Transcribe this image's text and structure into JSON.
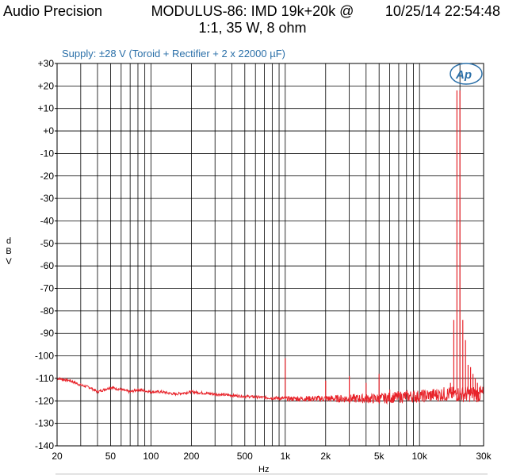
{
  "header": {
    "left": "Audio Precision",
    "center_line1": "MODULUS-86: IMD 19k+20k @",
    "center_line2": "1:1, 35 W, 8 ohm",
    "right": "10/25/14 22:54:48"
  },
  "chart_data": {
    "type": "line",
    "title": "MODULUS-86: IMD 19k+20k @ 1:1, 35 W, 8 ohm",
    "subtitle": "Supply: ±28 V (Toroid + Rectifier + 2 x 22000 µF)",
    "xlabel": "Hz",
    "ylabel": "dBV",
    "x_scale": "log",
    "xlim": [
      20,
      30000
    ],
    "ylim": [
      -140,
      30
    ],
    "grid": true,
    "y_ticks": [
      30,
      20,
      10,
      0,
      -10,
      -20,
      -30,
      -40,
      -50,
      -60,
      -70,
      -80,
      -90,
      -100,
      -110,
      -120,
      -130,
      -140
    ],
    "y_tick_labels": [
      "+30",
      "+20",
      "+10",
      "+0",
      "-10",
      "-20",
      "-30",
      "-40",
      "-50",
      "-60",
      "-70",
      "-80",
      "-90",
      "-100",
      "-110",
      "-120",
      "-130",
      "-140"
    ],
    "x_ticks": [
      20,
      50,
      100,
      200,
      500,
      1000,
      2000,
      5000,
      10000,
      30000
    ],
    "x_tick_labels": [
      "20",
      "50",
      "100",
      "200",
      "500",
      "1k",
      "2k",
      "5k",
      "10k",
      "30k"
    ],
    "series_color": "#e8232a",
    "series": [
      {
        "name": "",
        "noise_floor": [
          [
            20,
            -110
          ],
          [
            25,
            -111
          ],
          [
            30,
            -113
          ],
          [
            35,
            -114
          ],
          [
            40,
            -116
          ],
          [
            50,
            -114
          ],
          [
            60,
            -115
          ],
          [
            70,
            -116
          ],
          [
            80,
            -115
          ],
          [
            100,
            -116
          ],
          [
            120,
            -116
          ],
          [
            150,
            -117
          ],
          [
            200,
            -116
          ],
          [
            300,
            -117
          ],
          [
            500,
            -118
          ],
          [
            1000,
            -119
          ],
          [
            2000,
            -119
          ],
          [
            3000,
            -119
          ],
          [
            5000,
            -119
          ],
          [
            8000,
            -118
          ],
          [
            10000,
            -118
          ],
          [
            15000,
            -117
          ],
          [
            20000,
            -117
          ],
          [
            30000,
            -117
          ]
        ],
        "peaks": [
          [
            1000,
            -101
          ],
          [
            2000,
            -111
          ],
          [
            3000,
            -109
          ],
          [
            4000,
            -112
          ],
          [
            5000,
            -108
          ],
          [
            6000,
            -115
          ],
          [
            17000,
            -112
          ],
          [
            18000,
            -84
          ],
          [
            19000,
            18
          ],
          [
            20000,
            18
          ],
          [
            21000,
            -84
          ],
          [
            22000,
            -93
          ],
          [
            23000,
            -104
          ],
          [
            24000,
            -105
          ],
          [
            25000,
            -108
          ],
          [
            26000,
            -110
          ],
          [
            27000,
            -112
          ],
          [
            28000,
            -114
          ]
        ]
      }
    ]
  }
}
